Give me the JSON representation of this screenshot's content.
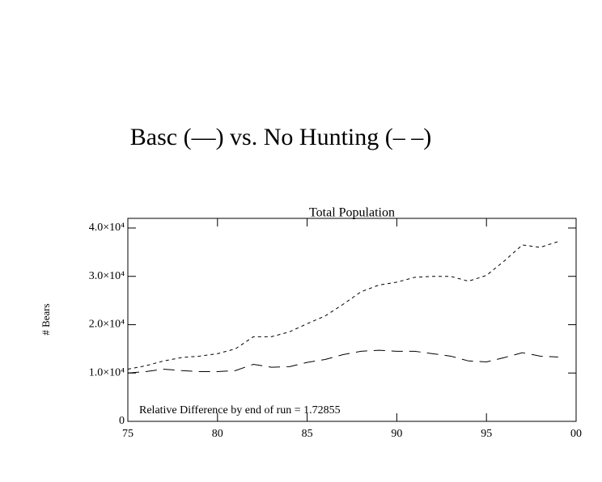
{
  "chart_data": {
    "type": "line",
    "header": "Basc (—) vs. No Hunting (– –)",
    "title": "Total Population",
    "ylabel": "# Bears",
    "annotation": "Relative Difference by end of run = 1.72855",
    "x": [
      75,
      76,
      77,
      78,
      79,
      80,
      81,
      82,
      83,
      84,
      85,
      86,
      87,
      88,
      89,
      90,
      91,
      92,
      93,
      94,
      95,
      96,
      97,
      98,
      99
    ],
    "series": [
      {
        "color": "#000000",
        "dash": "long",
        "values": [
          10000,
          10300,
          10800,
          10500,
          10300,
          10300,
          10500,
          11800,
          11200,
          11300,
          12200,
          12800,
          13800,
          14500,
          14700,
          14500,
          14500,
          14000,
          13500,
          12500,
          12300,
          13200,
          14200,
          13500,
          13300
        ]
      },
      {
        "color": "#000000",
        "dash": "short",
        "values": [
          10800,
          11500,
          12500,
          13200,
          13500,
          14000,
          15000,
          17500,
          17500,
          18500,
          20200,
          21800,
          24200,
          26800,
          28200,
          28800,
          29800,
          30000,
          30000,
          29000,
          30200,
          33200,
          36500,
          36000,
          37200
        ]
      }
    ],
    "xlim": [
      75,
      100
    ],
    "xticks": [
      75,
      80,
      85,
      90,
      95,
      {
        "value": 100,
        "label": "00"
      }
    ],
    "ylim": [
      0,
      42000
    ],
    "yticks": [
      0,
      {
        "value": 10000,
        "label": "1.0×10⁴"
      },
      {
        "value": 20000,
        "label": "2.0×10⁴"
      },
      {
        "value": 30000,
        "label": "3.0×10⁴"
      },
      {
        "value": 40000,
        "label": "4.0×10⁴"
      }
    ]
  }
}
